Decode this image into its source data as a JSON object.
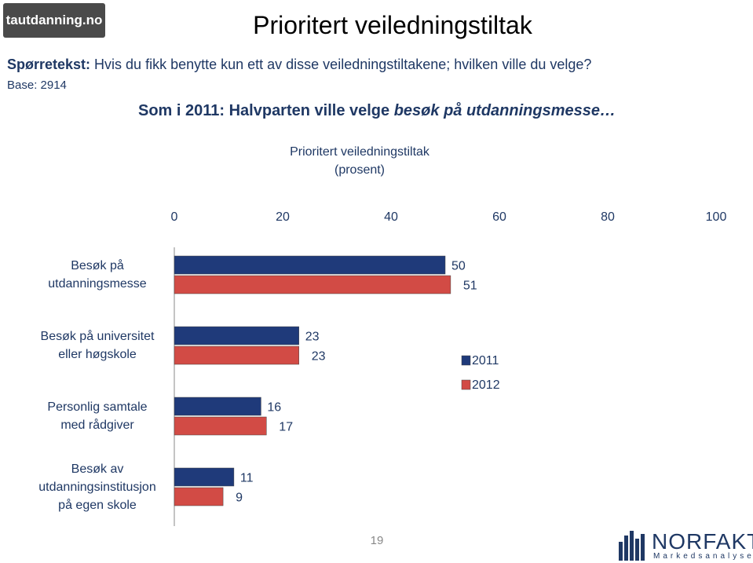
{
  "logo": "tautdanning.no",
  "title": "Prioritert veiledningstiltak",
  "question_label": "Spørretekst:",
  "question": "Hvis du fikk benytte kun ett av disse veiledningstiltakene; hvilken ville du velge?",
  "base": "Base: 2914",
  "headline": "Som i 2011: Halvparten ville velge",
  "headline_emphasis": "besøk på utdanningsmesse…",
  "page_number": "19",
  "brand": "NORFAKTA",
  "brand_sub": "Markedsanalyse",
  "chart_data": {
    "type": "hbar",
    "title": "Prioritert veiledningstiltak",
    "subtitle": "(prosent)",
    "categories": [
      "Besøk på\nutdanningsmesse",
      "Besøk på universitet\neller høgskole",
      "Personlig samtale\nmed rådgiver",
      "Besøk av\nutdanningsinstitusjon\npå egen skole"
    ],
    "series": [
      {
        "name": "2011",
        "color": "#1f3a7a",
        "values": [
          50,
          23,
          16,
          11
        ]
      },
      {
        "name": "2012",
        "color": "#d24b45",
        "values": [
          51,
          23,
          17,
          9
        ]
      }
    ],
    "xlim": [
      0,
      100
    ],
    "xticks": [
      0,
      20,
      40,
      60,
      80,
      100
    ],
    "legend": "right"
  }
}
